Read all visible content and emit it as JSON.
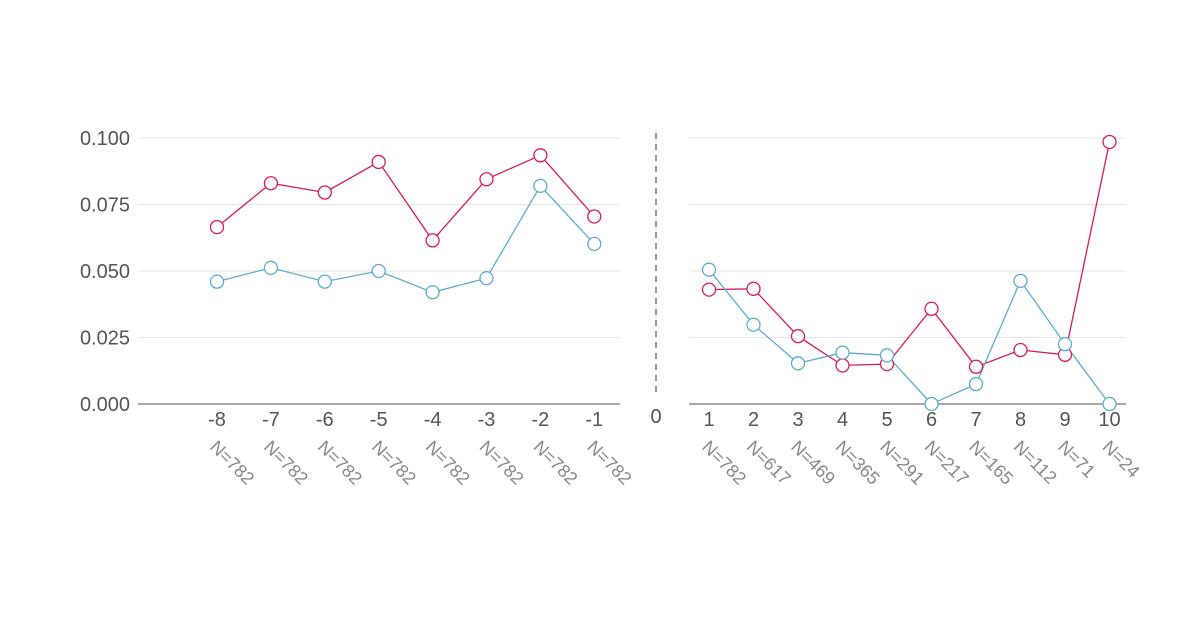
{
  "chart_data": {
    "type": "line",
    "title": "",
    "xlabel": "",
    "ylabel": "",
    "ylim": [
      0,
      0.1
    ],
    "yticks": [
      "0.000",
      "0.025",
      "0.050",
      "0.075",
      "0.100"
    ],
    "grid": true,
    "center_label": "0",
    "colors": {
      "red": "#d81b60",
      "blue": "#5aaecf"
    },
    "panels": [
      {
        "x": [
          -8,
          -7,
          -6,
          -5,
          -4,
          -3,
          -2,
          -1
        ],
        "xticklabels": [
          "-8",
          "-7",
          "-6",
          "-5",
          "-4",
          "-3",
          "-2",
          "-1"
        ],
        "n_labels": [
          "N=782",
          "N=782",
          "N=782",
          "N=782",
          "N=782",
          "N=782",
          "N=782",
          "N=782"
        ],
        "series": [
          {
            "color": "#d81b60",
            "values": [
              0.0665,
              0.083,
              0.0795,
              0.091,
              0.0615,
              0.0845,
              0.0935,
              0.0705
            ]
          },
          {
            "color": "#5aaecf",
            "values": [
              0.046,
              0.0512,
              0.046,
              0.05,
              0.042,
              0.0473,
              0.082,
              0.0602
            ]
          }
        ]
      },
      {
        "x": [
          1,
          2,
          3,
          4,
          5,
          6,
          7,
          8,
          9,
          10
        ],
        "xticklabels": [
          "1",
          "2",
          "3",
          "4",
          "5",
          "6",
          "7",
          "8",
          "9",
          "10"
        ],
        "n_labels": [
          "N=782",
          "N=617",
          "N=469",
          "N=365",
          "N=291",
          "N=217",
          "N=165",
          "N=112",
          "N=71",
          "N=24"
        ],
        "series": [
          {
            "color": "#d81b60",
            "values": [
              0.043,
              0.0433,
              0.0255,
              0.0145,
              0.015,
              0.0358,
              0.014,
              0.0203,
              0.0185,
              0.0985
            ]
          },
          {
            "color": "#5aaecf",
            "values": [
              0.0505,
              0.0298,
              0.0153,
              0.0193,
              0.0183,
              0.0,
              0.0075,
              0.0463,
              0.0225,
              0.0
            ]
          }
        ]
      }
    ]
  }
}
